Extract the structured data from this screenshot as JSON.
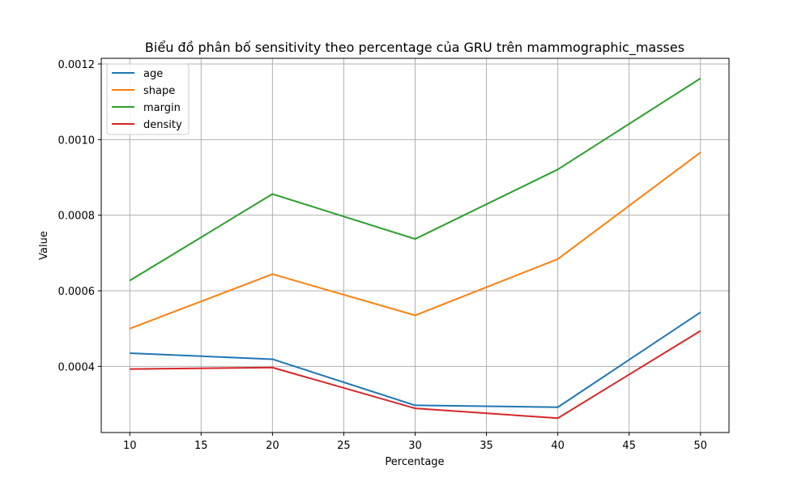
{
  "chart_data": {
    "type": "line",
    "title": "Biểu đồ phân bố sensitivity theo percentage của GRU trên mammographic_masses",
    "xlabel": "Percentage",
    "ylabel": "Value",
    "x": [
      10,
      20,
      30,
      40,
      50
    ],
    "xlim": [
      8,
      52
    ],
    "ylim": [
      0.000225,
      0.001215
    ],
    "xticks": [
      10,
      15,
      20,
      25,
      30,
      35,
      40,
      45,
      50
    ],
    "yticks": [
      0.0004,
      0.0006,
      0.0008,
      0.001,
      0.0012
    ],
    "ytick_labels": [
      "0.0004",
      "0.0006",
      "0.0008",
      "0.0010",
      "0.0012"
    ],
    "grid": true,
    "legend_position": "top-left",
    "series": [
      {
        "name": "age",
        "color": "#1f77b4",
        "values": [
          0.000435,
          0.000419,
          0.000297,
          0.000292,
          0.000543
        ]
      },
      {
        "name": "shape",
        "color": "#ff7f0e",
        "values": [
          0.0005,
          0.000644,
          0.000535,
          0.000684,
          0.000966
        ]
      },
      {
        "name": "margin",
        "color": "#2ca02c",
        "values": [
          0.000627,
          0.000856,
          0.000737,
          0.000921,
          0.001162
        ]
      },
      {
        "name": "density",
        "color": "#d62728",
        "values": [
          0.000393,
          0.000397,
          0.000289,
          0.000263,
          0.000494
        ]
      }
    ]
  }
}
